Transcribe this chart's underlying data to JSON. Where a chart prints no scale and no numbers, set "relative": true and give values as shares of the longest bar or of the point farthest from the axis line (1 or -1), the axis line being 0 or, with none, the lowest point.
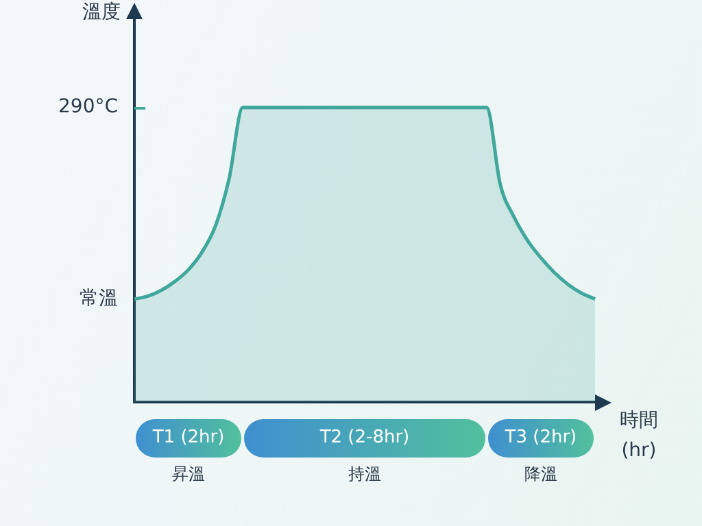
{
  "chart_data": {
    "type": "area",
    "relative": true,
    "legend": false,
    "marker": "none",
    "line_style": "solid",
    "ylabel": "溫度",
    "xlabel": "時間\n(hr)",
    "categories": [
      null,
      null,
      null,
      null,
      null,
      null,
      null,
      null,
      null,
      null,
      null,
      null,
      null,
      null,
      null,
      null,
      null,
      null,
      null,
      null,
      null,
      null,
      null,
      null,
      null,
      null,
      null,
      null,
      null,
      null,
      null,
      null,
      null,
      null,
      null
    ],
    "series": [
      {
        "color": "#3fa79c",
        "values": [
          0.35,
          0.36,
          0.38,
          0.41,
          0.45,
          0.51,
          0.6,
          0.76,
          1,
          1,
          1,
          1,
          1,
          1,
          1,
          1,
          1,
          1,
          1,
          1,
          1,
          1,
          1,
          1,
          1,
          1,
          1,
          0.74,
          0.63,
          0.55,
          0.49,
          0.44,
          0.4,
          0.37,
          0.35
        ]
      }
    ],
    "annotations": [
      "290°C",
      "常溫",
      "T1 (2hr)",
      "T2 (2-8hr)",
      "T3 (2hr)",
      "昇溫",
      "持溫",
      "降溫"
    ]
  }
}
